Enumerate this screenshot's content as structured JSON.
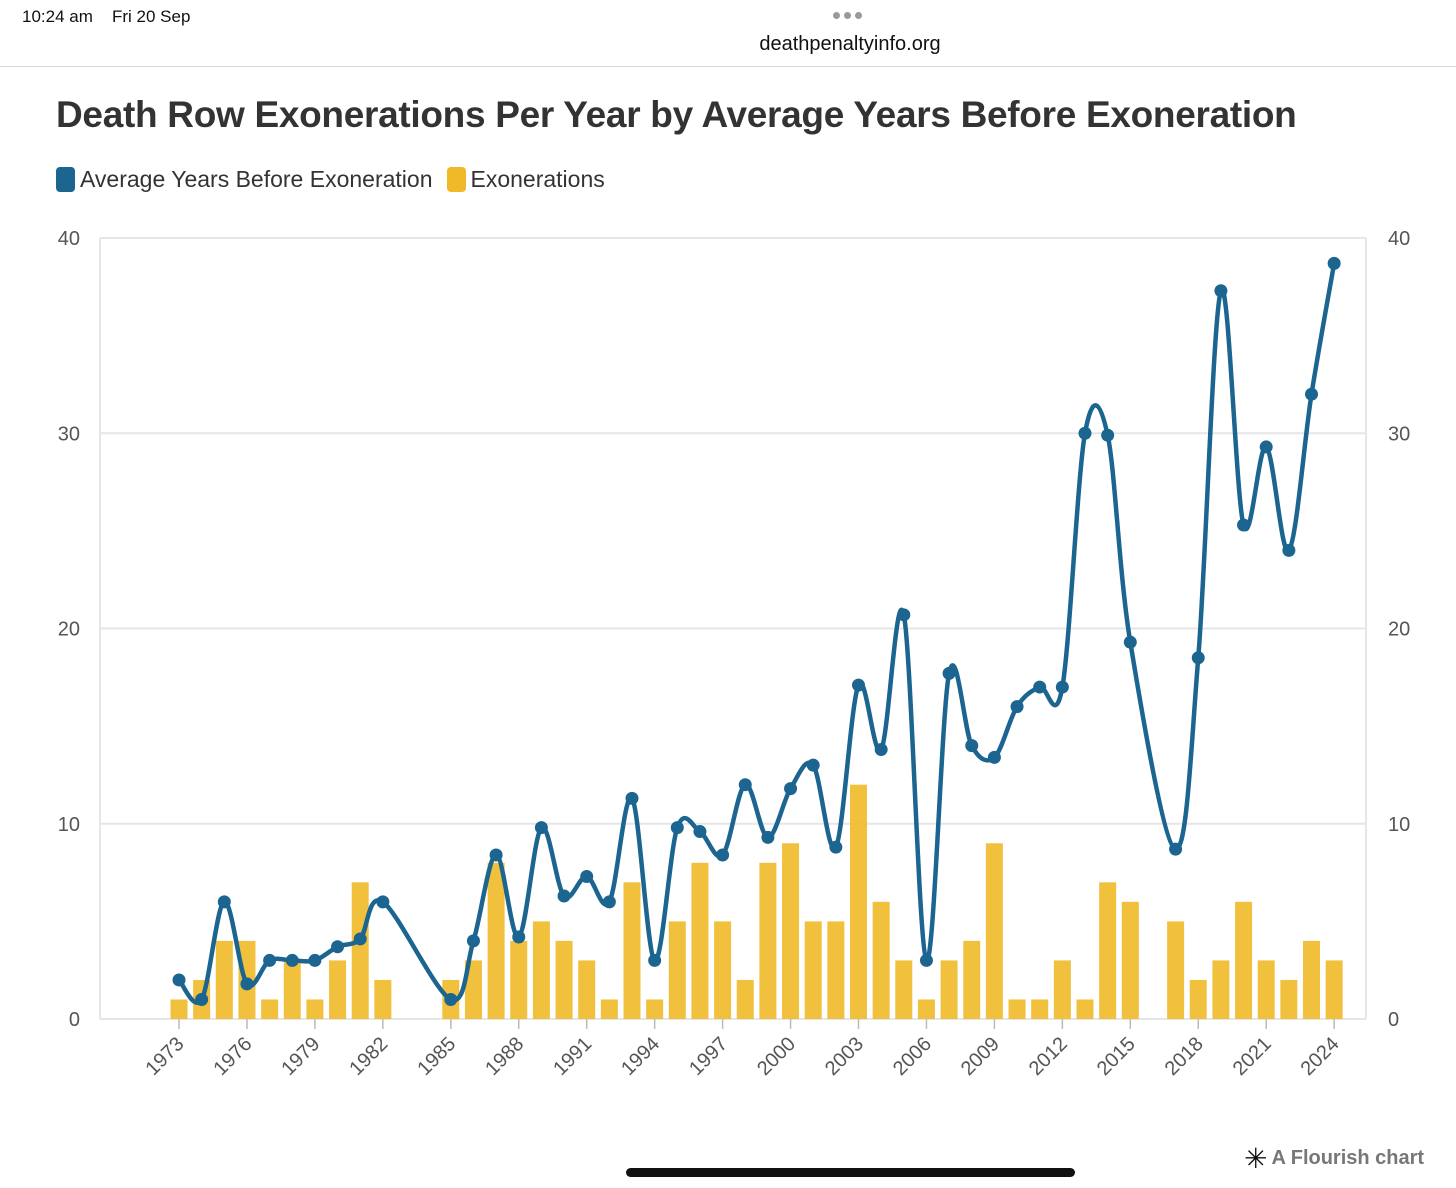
{
  "status_bar": {
    "time": "10:24 am",
    "date": "Fri 20 Sep",
    "url": "deathpenaltyinfo.org"
  },
  "footer": {
    "brand": "A Flourish chart",
    "icon": "asterisk-icon"
  },
  "colors": {
    "line": "#1b6590",
    "bar": "#efb928",
    "grid": "#e6e6e6",
    "text": "#333333"
  },
  "chart_data": {
    "type": "bar",
    "title": "Death Row Exonerations Per Year by Average Years Before Exoneration",
    "legend_placement": "top-left",
    "grid": true,
    "ylim": [
      0,
      40
    ],
    "y_ticks": [
      0,
      10,
      20,
      30,
      40
    ],
    "x_tick_labels": [
      "1973",
      "1976",
      "1979",
      "1982",
      "1985",
      "1988",
      "1991",
      "1994",
      "1997",
      "2000",
      "2003",
      "2006",
      "2009",
      "2012",
      "2015",
      "2018",
      "2021",
      "2024"
    ],
    "x": [
      1973,
      1974,
      1975,
      1976,
      1977,
      1978,
      1979,
      1980,
      1981,
      1982,
      1983,
      1984,
      1985,
      1986,
      1987,
      1988,
      1989,
      1990,
      1991,
      1992,
      1993,
      1994,
      1995,
      1996,
      1997,
      1998,
      1999,
      2000,
      2001,
      2002,
      2003,
      2004,
      2005,
      2006,
      2007,
      2008,
      2009,
      2010,
      2011,
      2012,
      2013,
      2014,
      2015,
      2016,
      2017,
      2018,
      2019,
      2020,
      2021,
      2022,
      2023,
      2024
    ],
    "series": [
      {
        "name": "Average Years Before Exoneration",
        "type": "line",
        "values": [
          2,
          1,
          6,
          1.8,
          3,
          3,
          3,
          3.7,
          4.1,
          6,
          null,
          null,
          1,
          4,
          8.4,
          4.2,
          9.8,
          6.3,
          7.3,
          6,
          11.3,
          3,
          9.8,
          9.6,
          8.4,
          12,
          9.3,
          11.8,
          13,
          8.8,
          17.1,
          13.8,
          20.7,
          3,
          17.7,
          14,
          13.4,
          16,
          17,
          17,
          30,
          29.9,
          19.3,
          null,
          8.7,
          18.5,
          37.3,
          25.3,
          29.3,
          24,
          32,
          38.7
        ]
      },
      {
        "name": "Exonerations",
        "type": "bar",
        "values": [
          1,
          2,
          4,
          4,
          1,
          3,
          1,
          3,
          7,
          2,
          null,
          null,
          2,
          3,
          8,
          4,
          5,
          4,
          3,
          1,
          7,
          1,
          5,
          8,
          5,
          2,
          8,
          9,
          5,
          5,
          12,
          6,
          3,
          1,
          3,
          4,
          9,
          1,
          1,
          3,
          1,
          7,
          6,
          null,
          5,
          2,
          3,
          6,
          3,
          2,
          4,
          3
        ]
      }
    ]
  }
}
